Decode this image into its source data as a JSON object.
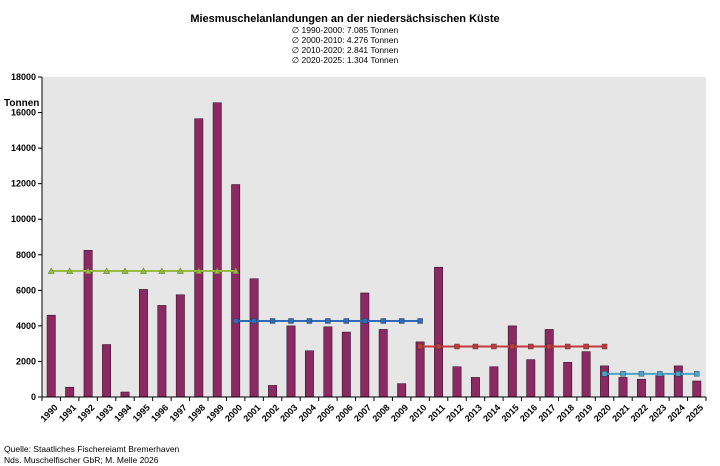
{
  "chart_data": {
    "type": "bar",
    "title": "Miesmuschelanlandungen an der niedersächsischen Küste",
    "subtitles": [
      "∅ 1990-2000: 7.085 Tonnen",
      "∅ 2000-2010: 4.276 Tonnen",
      "∅ 2010-2020: 2.841 Tonnen",
      "∅ 2020-2025: 1.304 Tonnen"
    ],
    "ylabel": "Tonnen",
    "xlabel": "",
    "ylim": [
      0,
      18000
    ],
    "yticks": [
      0,
      2000,
      4000,
      6000,
      8000,
      10000,
      12000,
      14000,
      16000,
      18000
    ],
    "categories": [
      "1990",
      "1991",
      "1992",
      "1993",
      "1994",
      "1995",
      "1996",
      "1997",
      "1998",
      "1999",
      "2000",
      "2001",
      "2002",
      "2003",
      "2004",
      "2005",
      "2006",
      "2007",
      "2008",
      "2009",
      "2010",
      "2011",
      "2012",
      "2013",
      "2014",
      "2015",
      "2016",
      "2017",
      "2018",
      "2019",
      "2020",
      "2021",
      "2022",
      "2023",
      "2024",
      "2025"
    ],
    "values": [
      4600,
      550,
      8250,
      2950,
      280,
      6050,
      5150,
      5750,
      15650,
      16550,
      11950,
      6650,
      650,
      4000,
      2600,
      3950,
      3650,
      5850,
      3800,
      750,
      3100,
      7300,
      1700,
      1100,
      1700,
      4000,
      2100,
      3800,
      1950,
      2550,
      1750,
      1100,
      1000,
      1200,
      1750,
      900
    ],
    "bar_color": "#8b2a62",
    "averages": [
      {
        "from": "1990",
        "to": "2000",
        "value": 7085,
        "color": "#99bb44",
        "marker": "triangle"
      },
      {
        "from": "2000",
        "to": "2010",
        "value": 4276,
        "color": "#2e6bb8",
        "marker": "square"
      },
      {
        "from": "2010",
        "to": "2020",
        "value": 2841,
        "color": "#c23b3b",
        "marker": "square"
      },
      {
        "from": "2020",
        "to": "2025",
        "value": 1304,
        "color": "#4aa3c8",
        "marker": "square"
      }
    ],
    "grid": false,
    "plot_background": "#e6e6e6"
  },
  "source": {
    "line1": "Quelle: Staatliches Fischereiamt Bremerhaven",
    "line2": "Nds. Muschelfischer GbR; M. Melle 2026"
  }
}
